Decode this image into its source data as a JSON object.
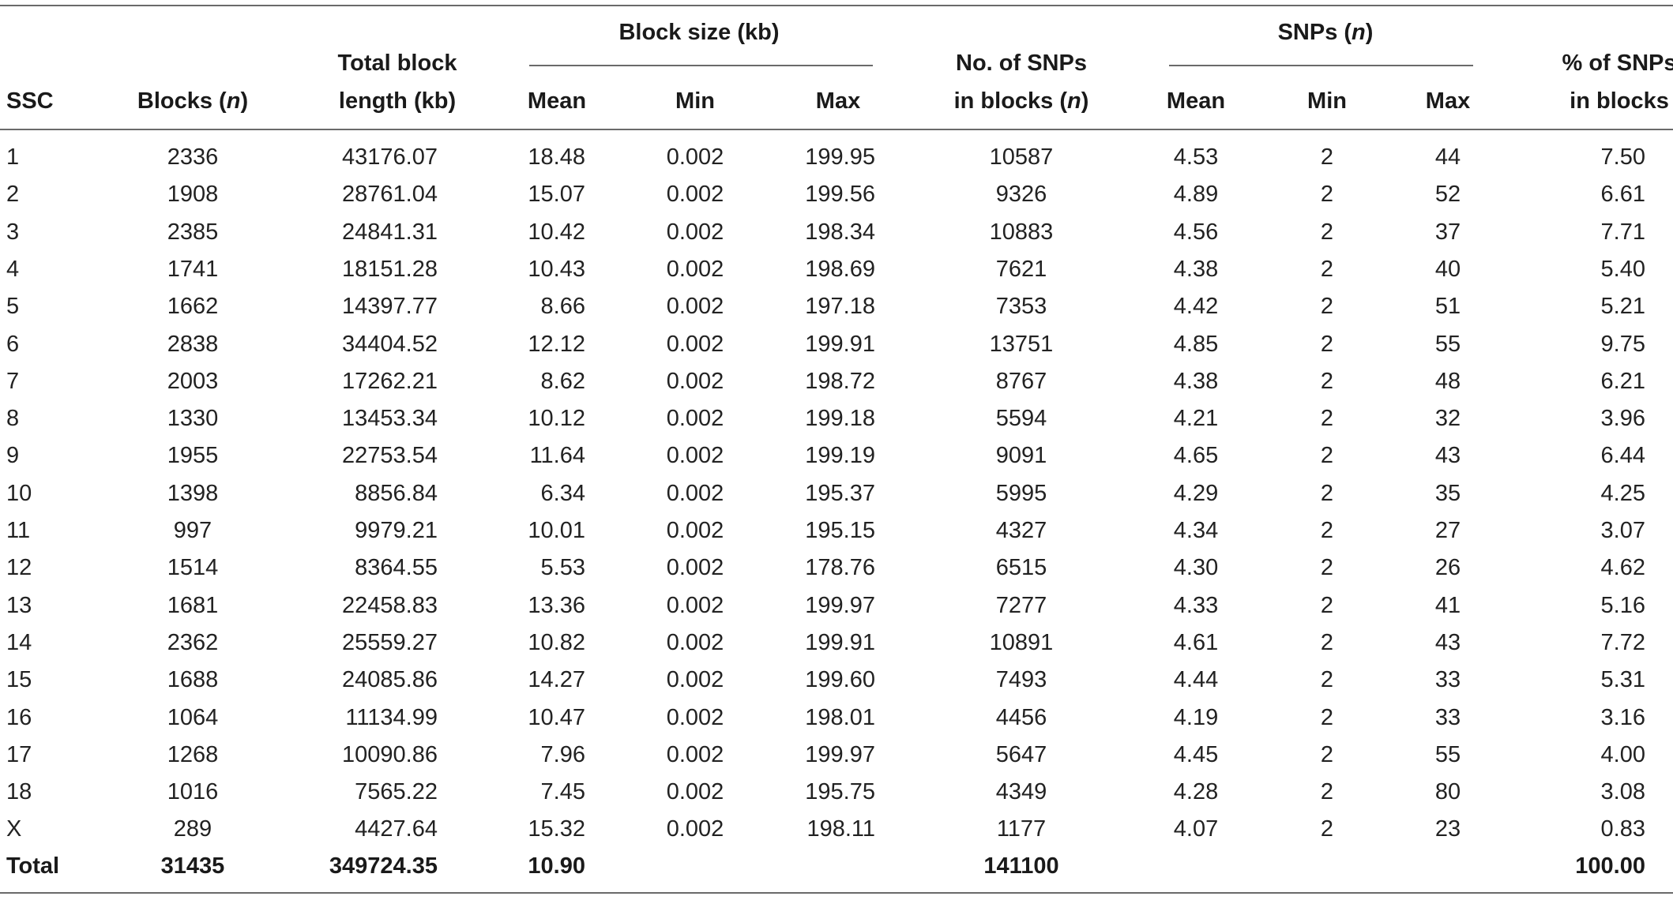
{
  "table": {
    "headers": {
      "group_block_size": "Block size (kb)",
      "group_snps": "SNPs (n)",
      "ssc": "SSC",
      "blocks": "Blocks (n)",
      "total_length": [
        "Total block",
        "length (kb)"
      ],
      "mean1": "Mean",
      "min1": "Min",
      "max1": "Max",
      "snps_in_blocks": [
        "No. of SNPs",
        "in blocks (n)"
      ],
      "mean2": "Mean",
      "min2": "Min",
      "max2": "Max",
      "pct_snps": [
        "% of SNPs",
        "in blocks"
      ]
    },
    "rows": [
      [
        "1",
        "2336",
        "43176.07",
        "18.48",
        "0.002",
        "199.95",
        "10587",
        "4.53",
        "2",
        "44",
        "7.50"
      ],
      [
        "2",
        "1908",
        "28761.04",
        "15.07",
        "0.002",
        "199.56",
        "9326",
        "4.89",
        "2",
        "52",
        "6.61"
      ],
      [
        "3",
        "2385",
        "24841.31",
        "10.42",
        "0.002",
        "198.34",
        "10883",
        "4.56",
        "2",
        "37",
        "7.71"
      ],
      [
        "4",
        "1741",
        "18151.28",
        "10.43",
        "0.002",
        "198.69",
        "7621",
        "4.38",
        "2",
        "40",
        "5.40"
      ],
      [
        "5",
        "1662",
        "14397.77",
        "8.66",
        "0.002",
        "197.18",
        "7353",
        "4.42",
        "2",
        "51",
        "5.21"
      ],
      [
        "6",
        "2838",
        "34404.52",
        "12.12",
        "0.002",
        "199.91",
        "13751",
        "4.85",
        "2",
        "55",
        "9.75"
      ],
      [
        "7",
        "2003",
        "17262.21",
        "8.62",
        "0.002",
        "198.72",
        "8767",
        "4.38",
        "2",
        "48",
        "6.21"
      ],
      [
        "8",
        "1330",
        "13453.34",
        "10.12",
        "0.002",
        "199.18",
        "5594",
        "4.21",
        "2",
        "32",
        "3.96"
      ],
      [
        "9",
        "1955",
        "22753.54",
        "11.64",
        "0.002",
        "199.19",
        "9091",
        "4.65",
        "2",
        "43",
        "6.44"
      ],
      [
        "10",
        "1398",
        "8856.84",
        "6.34",
        "0.002",
        "195.37",
        "5995",
        "4.29",
        "2",
        "35",
        "4.25"
      ],
      [
        "11",
        "997",
        "9979.21",
        "10.01",
        "0.002",
        "195.15",
        "4327",
        "4.34",
        "2",
        "27",
        "3.07"
      ],
      [
        "12",
        "1514",
        "8364.55",
        "5.53",
        "0.002",
        "178.76",
        "6515",
        "4.30",
        "2",
        "26",
        "4.62"
      ],
      [
        "13",
        "1681",
        "22458.83",
        "13.36",
        "0.002",
        "199.97",
        "7277",
        "4.33",
        "2",
        "41",
        "5.16"
      ],
      [
        "14",
        "2362",
        "25559.27",
        "10.82",
        "0.002",
        "199.91",
        "10891",
        "4.61",
        "2",
        "43",
        "7.72"
      ],
      [
        "15",
        "1688",
        "24085.86",
        "14.27",
        "0.002",
        "199.60",
        "7493",
        "4.44",
        "2",
        "33",
        "5.31"
      ],
      [
        "16",
        "1064",
        "11134.99",
        "10.47",
        "0.002",
        "198.01",
        "4456",
        "4.19",
        "2",
        "33",
        "3.16"
      ],
      [
        "17",
        "1268",
        "10090.86",
        "7.96",
        "0.002",
        "199.97",
        "5647",
        "4.45",
        "2",
        "55",
        "4.00"
      ],
      [
        "18",
        "1016",
        "7565.22",
        "7.45",
        "0.002",
        "195.75",
        "4349",
        "4.28",
        "2",
        "80",
        "3.08"
      ],
      [
        "X",
        "289",
        "4427.64",
        "15.32",
        "0.002",
        "198.11",
        "1177",
        "4.07",
        "2",
        "23",
        "0.83"
      ]
    ],
    "total_row": [
      "Total",
      "31435",
      "349724.35",
      "10.90",
      "",
      "",
      "141100",
      "",
      "",
      "",
      "100.00"
    ]
  }
}
